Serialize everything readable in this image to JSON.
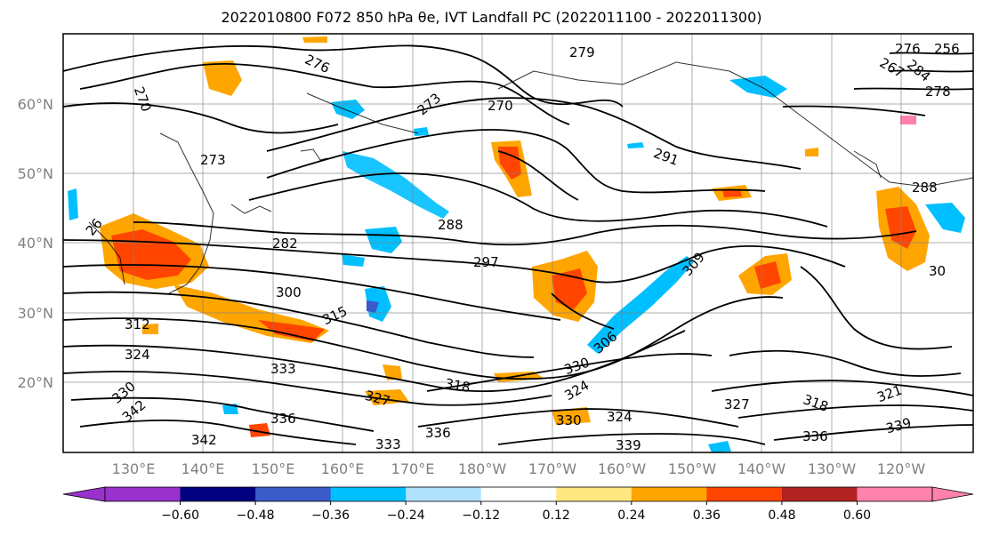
{
  "title": "2022010800 F072 850 hPa θe, IVT Landfall PC (2022011100 - 2022011300)",
  "lat_ticks": [
    "60°N",
    "50°N",
    "40°N",
    "30°N",
    "20°N"
  ],
  "lon_ticks": [
    "130°E",
    "140°E",
    "150°E",
    "160°E",
    "170°E",
    "180°W",
    "170°W",
    "160°W",
    "150°W",
    "140°W",
    "130°W",
    "120°W"
  ],
  "colorbar": {
    "colors": [
      "#9932cc",
      "#000080",
      "#3a5bc8",
      "#00bfff",
      "#b0e2ff",
      "#ffffff",
      "#ffe680",
      "#ffa500",
      "#ff4500",
      "#b22222",
      "#ff82ab"
    ],
    "extend_low_color": "#9932cc",
    "extend_high_color": "#ff82ab",
    "tick_labels": [
      "−0.60",
      "−0.48",
      "−0.36",
      "−0.24",
      "−0.12",
      "0.12",
      "0.24",
      "0.36",
      "0.48",
      "0.60"
    ]
  },
  "contour_labels": [
    "276",
    "279",
    "270",
    "273",
    "270",
    "273",
    "291",
    "288",
    "282",
    "297",
    "288",
    "300",
    "309",
    "312",
    "315",
    "306",
    "324",
    "333",
    "318",
    "330",
    "324",
    "327",
    "327",
    "318",
    "321",
    "339",
    "342",
    "336",
    "342",
    "336",
    "333",
    "330",
    "324",
    "339",
    "336",
    "330",
    "276",
    "284",
    "278",
    "267",
    "256",
    "26",
    "30"
  ]
}
